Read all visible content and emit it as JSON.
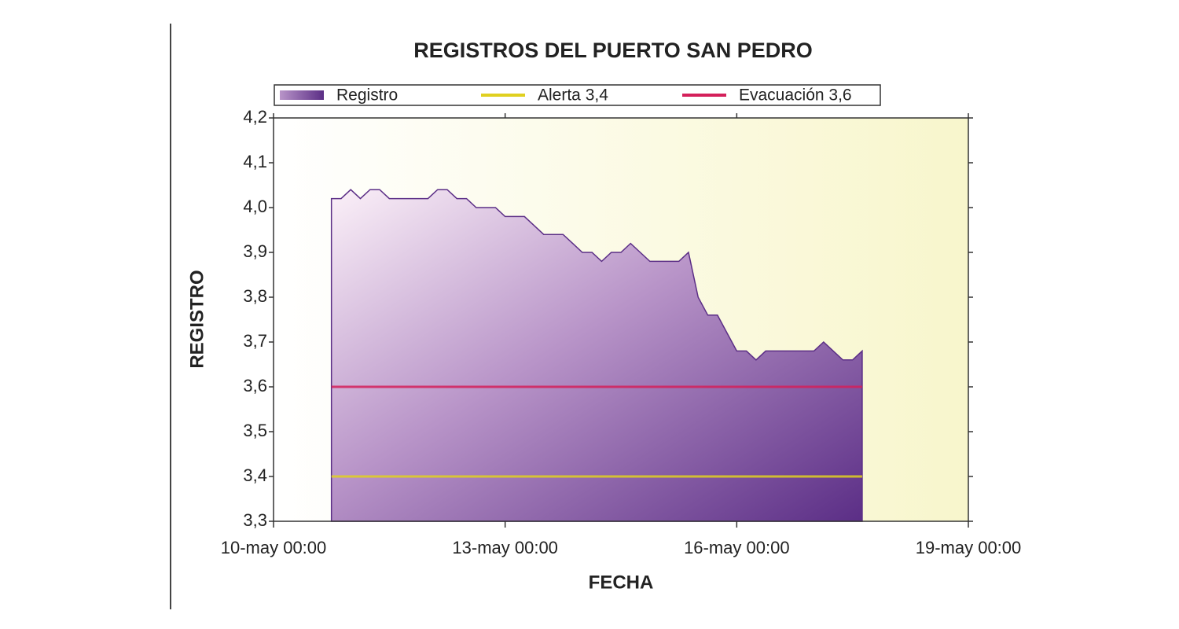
{
  "chart_data": {
    "type": "area",
    "title": "REGISTROS DEL PUERTO SAN PEDRO",
    "x_label": "FECHA",
    "y_label": "REGISTRO",
    "xlim": [
      "10-may 00:00",
      "19-may 00:00"
    ],
    "xticks": [
      "10-may 00:00",
      "13-may 00:00",
      "16-may 00:00",
      "19-may 00:00"
    ],
    "ylim": [
      3.3,
      4.2
    ],
    "yticks": [
      {
        "value": 3.3,
        "label": "3,3"
      },
      {
        "value": 3.4,
        "label": "3,4"
      },
      {
        "value": 3.5,
        "label": "3,5"
      },
      {
        "value": 3.6,
        "label": "3,6"
      },
      {
        "value": 3.7,
        "label": "3,7"
      },
      {
        "value": 3.8,
        "label": "3,8"
      },
      {
        "value": 3.9,
        "label": "3,9"
      },
      {
        "value": 4.0,
        "label": "4,0"
      },
      {
        "value": 4.1,
        "label": "4,1"
      },
      {
        "value": 4.2,
        "label": "4,2"
      }
    ],
    "series": [
      {
        "name": "Registro",
        "type": "area",
        "color": "#5b2e86",
        "x": [
          "10-may 18:00",
          "10-may 21:00",
          "11-may 00:00",
          "11-may 03:00",
          "11-may 06:00",
          "11-may 09:00",
          "11-may 12:00",
          "11-may 15:00",
          "11-may 18:00",
          "11-may 21:00",
          "12-may 00:00",
          "12-may 03:00",
          "12-may 06:00",
          "12-may 09:00",
          "12-may 12:00",
          "12-may 15:00",
          "12-may 18:00",
          "12-may 21:00",
          "13-may 00:00",
          "13-may 03:00",
          "13-may 06:00",
          "13-may 09:00",
          "13-may 12:00",
          "13-may 15:00",
          "13-may 18:00",
          "13-may 21:00",
          "14-may 00:00",
          "14-may 03:00",
          "14-may 06:00",
          "14-may 09:00",
          "14-may 12:00",
          "14-may 15:00",
          "14-may 18:00",
          "14-may 21:00",
          "15-may 00:00",
          "15-may 03:00",
          "15-may 06:00",
          "15-may 09:00",
          "15-may 12:00",
          "15-may 15:00",
          "15-may 18:00",
          "15-may 21:00",
          "16-may 00:00",
          "16-may 03:00",
          "16-may 06:00",
          "16-may 09:00",
          "16-may 12:00",
          "16-may 15:00",
          "16-may 18:00",
          "16-may 21:00",
          "17-may 00:00",
          "17-may 03:00",
          "17-may 06:00",
          "17-may 09:00",
          "17-may 12:00",
          "17-may 15:00"
        ],
        "values": [
          4.02,
          4.02,
          4.04,
          4.02,
          4.04,
          4.04,
          4.02,
          4.02,
          4.02,
          4.02,
          4.02,
          4.04,
          4.04,
          4.02,
          4.02,
          4.0,
          4.0,
          4.0,
          3.98,
          3.98,
          3.98,
          3.96,
          3.94,
          3.94,
          3.94,
          3.92,
          3.9,
          3.9,
          3.88,
          3.9,
          3.9,
          3.92,
          3.9,
          3.88,
          3.88,
          3.88,
          3.88,
          3.9,
          3.8,
          3.76,
          3.76,
          3.72,
          3.68,
          3.68,
          3.66,
          3.68,
          3.68,
          3.68,
          3.68,
          3.68,
          3.68,
          3.7,
          3.68,
          3.66,
          3.66,
          3.68
        ]
      },
      {
        "name": "Alerta 3,4",
        "type": "line",
        "color": "#e0d020",
        "x": [
          "10-may 18:00",
          "17-may 15:00"
        ],
        "values": [
          3.4,
          3.4
        ]
      },
      {
        "name": "Evacuación 3,6",
        "type": "line",
        "color": "#d4205a",
        "x": [
          "10-may 18:00",
          "17-may 15:00"
        ],
        "values": [
          3.6,
          3.6
        ]
      }
    ]
  }
}
